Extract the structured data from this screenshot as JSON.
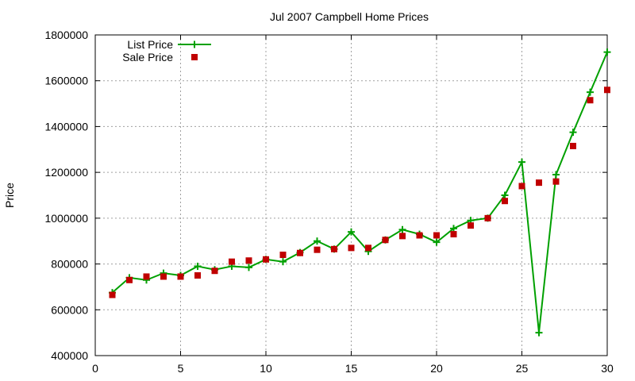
{
  "chart_data": {
    "type": "line",
    "title": "Jul 2007 Campbell Home Prices",
    "xlabel": "",
    "ylabel": "Price",
    "xlim": [
      0,
      30
    ],
    "ylim": [
      400000,
      1800000
    ],
    "x_ticks": [
      0,
      5,
      10,
      15,
      20,
      25,
      30
    ],
    "x_tick_labels": [
      "0",
      "5",
      "10",
      "15",
      "20",
      "25",
      "30"
    ],
    "y_ticks": [
      400000,
      600000,
      800000,
      1000000,
      1200000,
      1400000,
      1600000,
      1800000
    ],
    "y_tick_labels": [
      "400000",
      "600000",
      "800000",
      "1000000",
      "1200000",
      "1400000",
      "1600000",
      "1800000"
    ],
    "grid": true,
    "legend_position": "top-left",
    "x": [
      1,
      2,
      3,
      4,
      5,
      6,
      7,
      8,
      9,
      10,
      11,
      12,
      13,
      14,
      15,
      16,
      17,
      18,
      19,
      20,
      21,
      22,
      23,
      24,
      25,
      26,
      27,
      28,
      29,
      30
    ],
    "series": [
      {
        "name": "List Price",
        "style": "linespoints",
        "color": "#00a000",
        "marker": "plus",
        "values": [
          675000,
          740000,
          730000,
          760000,
          750000,
          790000,
          775000,
          790000,
          785000,
          820000,
          810000,
          850000,
          900000,
          865000,
          940000,
          855000,
          905000,
          950000,
          930000,
          895000,
          955000,
          990000,
          1000000,
          1100000,
          1245000,
          500000,
          1190000,
          1375000,
          1550000,
          1725000
        ]
      },
      {
        "name": "Sale Price",
        "style": "points",
        "color": "#c00000",
        "marker": "square",
        "values": [
          665000,
          730000,
          745000,
          745000,
          745000,
          750000,
          770000,
          810000,
          815000,
          820000,
          840000,
          848000,
          862000,
          865000,
          870000,
          870000,
          905000,
          922000,
          925000,
          925000,
          930000,
          968000,
          1000000,
          1075000,
          1140000,
          1155000,
          1160000,
          1315000,
          1515000,
          1560000
        ]
      }
    ]
  }
}
